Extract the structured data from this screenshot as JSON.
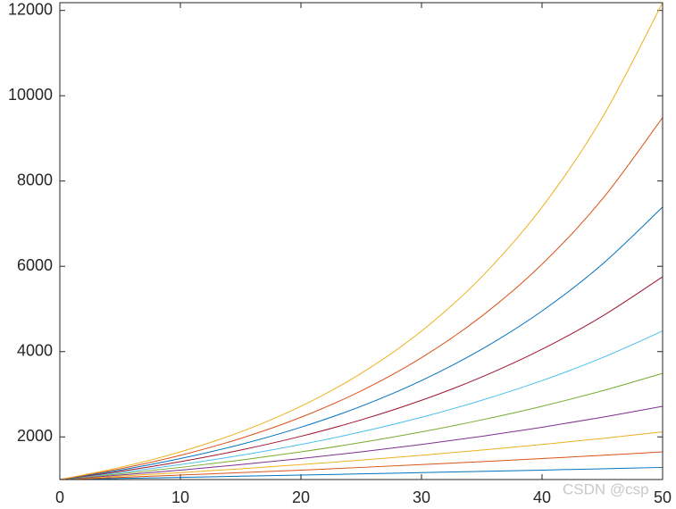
{
  "chart_data": {
    "type": "line",
    "x": [
      0,
      5,
      10,
      15,
      20,
      25,
      30,
      35,
      40,
      45,
      50
    ],
    "series": [
      {
        "color": "#0072BD",
        "values": [
          1000,
          1025,
          1051,
          1078,
          1105,
          1133,
          1162,
          1191,
          1221,
          1252,
          1284
        ]
      },
      {
        "color": "#D95319",
        "values": [
          1000,
          1051,
          1105,
          1162,
          1221,
          1284,
          1350,
          1419,
          1492,
          1568,
          1649
        ]
      },
      {
        "color": "#EDB120",
        "values": [
          1000,
          1078,
          1162,
          1252,
          1350,
          1455,
          1568,
          1691,
          1822,
          1964,
          2117
        ]
      },
      {
        "color": "#7E2F8E",
        "values": [
          1000,
          1105,
          1221,
          1350,
          1492,
          1649,
          1822,
          2014,
          2226,
          2460,
          2718
        ]
      },
      {
        "color": "#77AC30",
        "values": [
          1000,
          1133,
          1284,
          1455,
          1649,
          1868,
          2117,
          2399,
          2718,
          3080,
          3490
        ]
      },
      {
        "color": "#4DBEEE",
        "values": [
          1000,
          1162,
          1350,
          1568,
          1822,
          2117,
          2460,
          2858,
          3320,
          3857,
          4482
        ]
      },
      {
        "color": "#A2142F",
        "values": [
          1000,
          1191,
          1419,
          1691,
          2014,
          2399,
          2858,
          3404,
          4055,
          4831,
          5755
        ]
      },
      {
        "color": "#0072BD",
        "values": [
          1000,
          1221,
          1492,
          1822,
          2226,
          2718,
          3320,
          4055,
          4953,
          6050,
          7389
        ]
      },
      {
        "color": "#D95319",
        "values": [
          1000,
          1252,
          1568,
          1964,
          2460,
          3080,
          3857,
          4831,
          6050,
          7576,
          9488
        ]
      },
      {
        "color": "#EDB120",
        "values": [
          1000,
          1284,
          1649,
          2117,
          2718,
          3490,
          4482,
          5755,
          7389,
          9488,
          12182
        ]
      }
    ],
    "xlim": [
      0,
      50
    ],
    "xticks": [
      0,
      10,
      20,
      30,
      40,
      50
    ],
    "ylim": [
      1000,
      12182
    ],
    "yticks": [
      2000,
      4000,
      6000,
      8000,
      10000,
      12000
    ],
    "watermark": "CSDN @csp"
  }
}
